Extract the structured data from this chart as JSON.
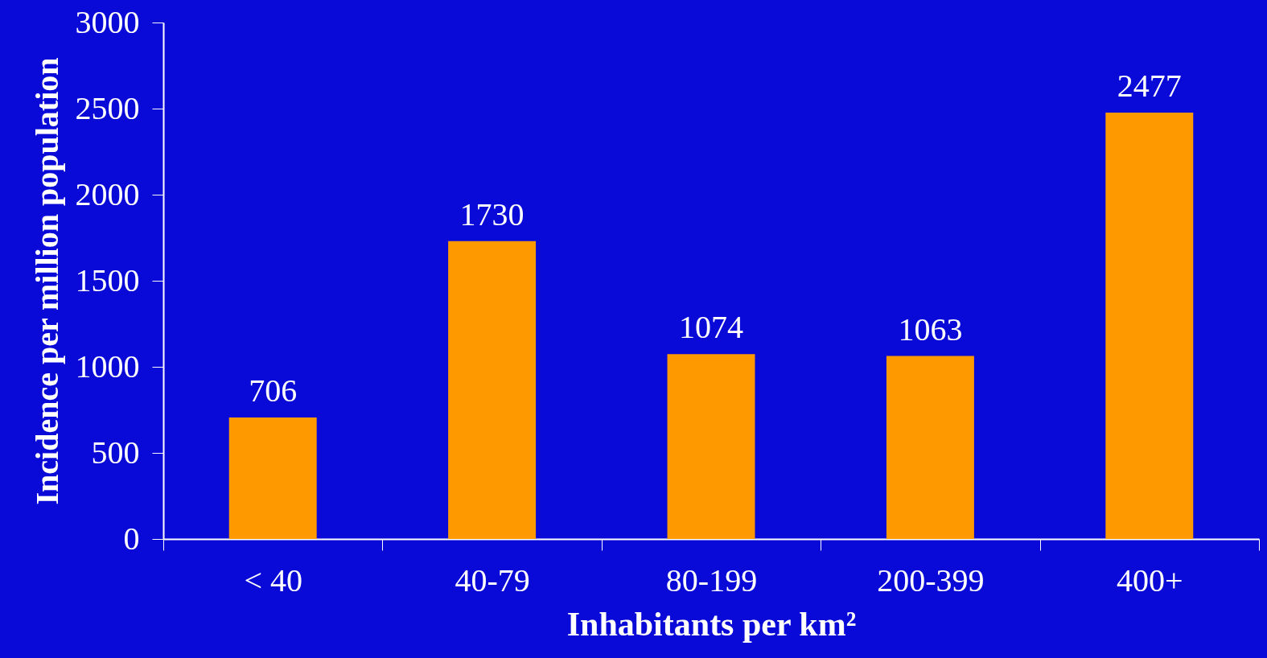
{
  "chart_data": {
    "type": "bar",
    "xlabel": "Inhabitants per km²",
    "ylabel": "Incidence per million population",
    "categories": [
      "< 40",
      "40-79",
      "80-199",
      "200-399",
      "400+"
    ],
    "values": [
      706,
      1730,
      1074,
      1063,
      2477
    ],
    "color": "#ff9900",
    "ylim": [
      0,
      3000
    ],
    "yticks": [
      0,
      500,
      1000,
      1500,
      2000,
      2500,
      3000
    ],
    "grid": false,
    "data_labels": true
  }
}
